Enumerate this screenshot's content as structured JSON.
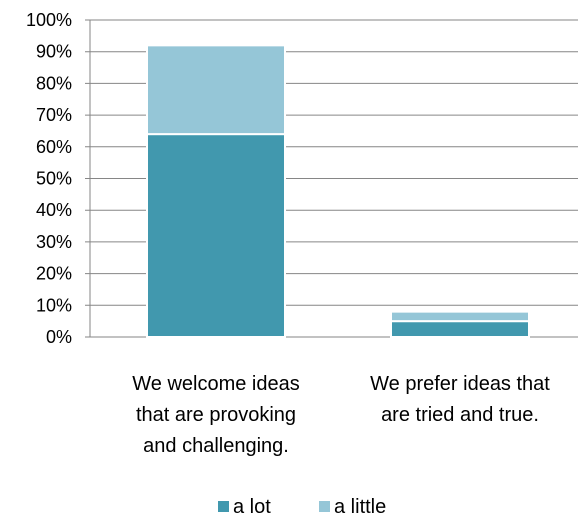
{
  "chart_data": {
    "type": "bar",
    "stacked": true,
    "categories": [
      [
        "We welcome ideas",
        "that are provoking",
        "and challenging."
      ],
      [
        "We prefer ideas that",
        "are tried and true."
      ]
    ],
    "series": [
      {
        "name": "a lot",
        "values": [
          64,
          5
        ],
        "color": "#4198ae"
      },
      {
        "name": "a little",
        "values": [
          28,
          3
        ],
        "color": "#95c6d7"
      }
    ],
    "y_ticks": [
      "0%",
      "10%",
      "20%",
      "30%",
      "40%",
      "50%",
      "60%",
      "70%",
      "80%",
      "90%",
      "100%"
    ],
    "ylim": [
      0,
      100
    ],
    "grid": true,
    "legend_position": "bottom"
  }
}
